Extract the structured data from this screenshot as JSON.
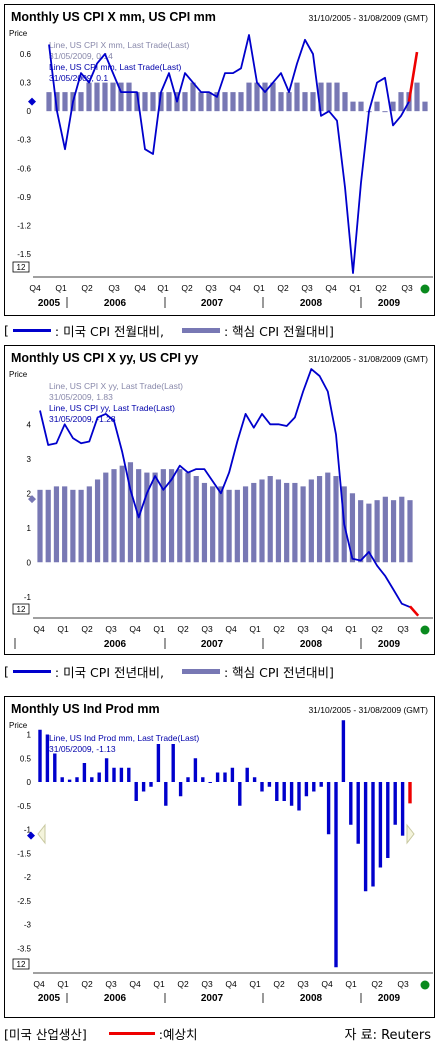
{
  "panels": [
    {
      "title": "Monthly US CPI X mm, US CPI mm",
      "range": "31/10/2005 - 31/08/2009 (GMT)",
      "price": "Price",
      "tag": "12",
      "annotation": [
        "Line, US CPI X mm, Last Trade(Last)",
        "31/05/2009, 0.14",
        "Line, US CPI mm, Last Trade(Last)",
        "31/05/2009, 0.1"
      ]
    },
    {
      "title": "Monthly US CPI X yy, US CPI yy",
      "range": "31/10/2005 - 31/08/2009 (GMT)",
      "price": "Price",
      "tag": "12",
      "annotation": [
        "Line, US CPI X yy, Last Trade(Last)",
        "31/05/2009, 1.83",
        "Line, US CPI yy, Last Trade(Last)",
        "31/05/2009, -1.28"
      ]
    },
    {
      "title": "Monthly US Ind Prod mm",
      "range": "31/10/2005 - 31/08/2009 (GMT)",
      "price": "Price",
      "tag": "12",
      "annotation": [
        "Line, US Ind Prod mm, Last Trade(Last)",
        "31/05/2009, -1.13"
      ]
    }
  ],
  "legends": {
    "one": {
      "open": "[",
      "line": ": 미국 CPI 전월대비,",
      "bar": ": 핵심 CPI 전월대비]"
    },
    "two": {
      "open": "[",
      "line": ": 미국 CPI 전년대비,",
      "bar": ": 핵심 CPI 전년대비]"
    },
    "three": {
      "label": "[미국 산업생산]",
      "forecast": ":예상치",
      "source": "자 료: Reuters"
    }
  },
  "colors": {
    "line": "#0000cc",
    "bar": "#7878b4",
    "forecast": "#ee0000",
    "marker": "#0a8a1e"
  },
  "chart_data": [
    {
      "type": "bar",
      "title": "Monthly US CPI X mm, US CPI mm",
      "ylabel": "Price",
      "ylim": [
        -1.7,
        0.8
      ],
      "yticks": [
        0.6,
        0.3,
        0,
        -0.3,
        -0.6,
        -0.9,
        -1.2,
        -1.5
      ],
      "xticks": [
        "Q4",
        "Q1",
        "Q2",
        "Q3",
        "Q4",
        "Q1",
        "Q2",
        "Q3",
        "Q4",
        "Q1",
        "Q2",
        "Q3",
        "Q4",
        "Q1",
        "Q2",
        "Q3"
      ],
      "years": [
        "2005",
        "2006",
        "2007",
        "2008",
        "2009"
      ],
      "series": [
        {
          "name": "US CPI X mm",
          "kind": "bar",
          "values": [
            0.2,
            0.2,
            0.2,
            0.2,
            0.2,
            0.3,
            0.3,
            0.3,
            0.3,
            0.3,
            0.3,
            0.2,
            0.2,
            0.2,
            0.2,
            0.2,
            0.2,
            0.2,
            0.3,
            0.2,
            0.2,
            0.2,
            0.2,
            0.2,
            0.2,
            0.3,
            0.3,
            0.3,
            0.3,
            0.2,
            0.2,
            0.3,
            0.2,
            0.2,
            0.3,
            0.3,
            0.3,
            0.2,
            0.1,
            0.1,
            0.0,
            0.1,
            0.0,
            0.1,
            0.2,
            0.2,
            0.3,
            0.1
          ]
        },
        {
          "name": "US CPI mm",
          "kind": "line",
          "values": [
            0.7,
            0.0,
            -0.4,
            0.1,
            0.4,
            0.3,
            0.5,
            0.6,
            0.4,
            0.2,
            0.2,
            0.2,
            -0.4,
            -0.45,
            0.2,
            0.4,
            0.1,
            0.4,
            0.3,
            0.2,
            0.2,
            0.15,
            0.4,
            0.4,
            0.45,
            0.8,
            0.3,
            0.2,
            0.3,
            0.4,
            0.2,
            0.5,
            0.75,
            0.6,
            -0.05,
            0.0,
            -0.1,
            -0.8,
            -1.7,
            -0.75,
            0.0,
            0.3,
            0.35,
            -0.15,
            -0.05,
            0.1
          ]
        },
        {
          "name": "Forecast",
          "kind": "line",
          "x_start": 45,
          "values": [
            0.1,
            0.62
          ]
        }
      ]
    },
    {
      "type": "bar",
      "title": "Monthly US CPI X yy, US CPI yy",
      "ylabel": "Price",
      "ylim": [
        -1.5,
        5.4
      ],
      "yticks": [
        4,
        3,
        2,
        1,
        0,
        -1
      ],
      "xticks": [
        "Q4",
        "Q1",
        "Q2",
        "Q3",
        "Q4",
        "Q1",
        "Q2",
        "Q3",
        "Q4",
        "Q1",
        "Q2",
        "Q3",
        "Q4",
        "Q1",
        "Q2",
        "Q3"
      ],
      "years": [
        "2005",
        "2006",
        "2007",
        "2008",
        "2009"
      ],
      "series": [
        {
          "name": "US CPI X yy",
          "kind": "bar",
          "values": [
            2.1,
            2.1,
            2.2,
            2.2,
            2.1,
            2.1,
            2.2,
            2.4,
            2.6,
            2.7,
            2.8,
            2.9,
            2.7,
            2.6,
            2.6,
            2.7,
            2.7,
            2.7,
            2.6,
            2.5,
            2.3,
            2.2,
            2.2,
            2.1,
            2.1,
            2.2,
            2.3,
            2.4,
            2.5,
            2.4,
            2.3,
            2.3,
            2.2,
            2.4,
            2.5,
            2.6,
            2.5,
            2.2,
            2.0,
            1.8,
            1.7,
            1.8,
            1.9,
            1.8,
            1.9,
            1.8
          ]
        },
        {
          "name": "US CPI yy",
          "kind": "line",
          "values": [
            4.4,
            3.4,
            3.45,
            4.0,
            3.6,
            3.45,
            3.5,
            4.2,
            4.3,
            4.1,
            3.2,
            2.1,
            1.3,
            2.0,
            2.5,
            2.1,
            2.4,
            2.8,
            2.6,
            2.7,
            2.7,
            2.35,
            2.0,
            2.6,
            3.5,
            4.3,
            3.9,
            4.3,
            4.0,
            4.0,
            3.95,
            4.2,
            4.95,
            5.6,
            5.4,
            4.95,
            3.7,
            1.1,
            0.1,
            0.05,
            0.3,
            -0.1,
            -0.4,
            -0.8,
            -1.2,
            -1.3
          ]
        },
        {
          "name": "Forecast",
          "kind": "line",
          "x_start": 45,
          "values": [
            -1.28,
            -1.55
          ]
        }
      ]
    },
    {
      "type": "bar",
      "title": "Monthly US Ind Prod mm",
      "ylabel": "Price",
      "ylim": [
        -4.0,
        1.2
      ],
      "yticks": [
        1,
        0.5,
        0,
        -0.5,
        -1,
        -1.5,
        -2,
        -2.5,
        -3,
        -3.5
      ],
      "xticks": [
        "Q4",
        "Q1",
        "Q2",
        "Q3",
        "Q4",
        "Q1",
        "Q2",
        "Q3",
        "Q4",
        "Q1",
        "Q2",
        "Q3",
        "Q4",
        "Q1",
        "Q2",
        "Q3"
      ],
      "years": [
        "2005",
        "2006",
        "2007",
        "2008",
        "2009"
      ],
      "series": [
        {
          "name": "US Ind Prod mm",
          "kind": "bar",
          "values": [
            1.1,
            1.0,
            0.6,
            0.1,
            0.05,
            0.1,
            0.4,
            0.1,
            0.2,
            0.5,
            0.3,
            0.3,
            0.3,
            -0.4,
            -0.2,
            -0.1,
            0.8,
            -0.5,
            0.8,
            -0.3,
            0.1,
            0.5,
            0.1,
            0.0,
            0.2,
            0.2,
            0.3,
            -0.5,
            0.3,
            0.1,
            -0.2,
            -0.1,
            -0.4,
            -0.4,
            -0.5,
            -0.6,
            -0.3,
            -0.2,
            -0.1,
            -1.1,
            -3.9,
            1.3,
            -0.9,
            -1.3,
            -2.3,
            -2.2,
            -1.8,
            -1.6,
            -0.9,
            -1.13
          ]
        },
        {
          "name": "Forecast",
          "kind": "bar",
          "x_start": 50,
          "values": [
            -0.45
          ]
        }
      ]
    }
  ]
}
